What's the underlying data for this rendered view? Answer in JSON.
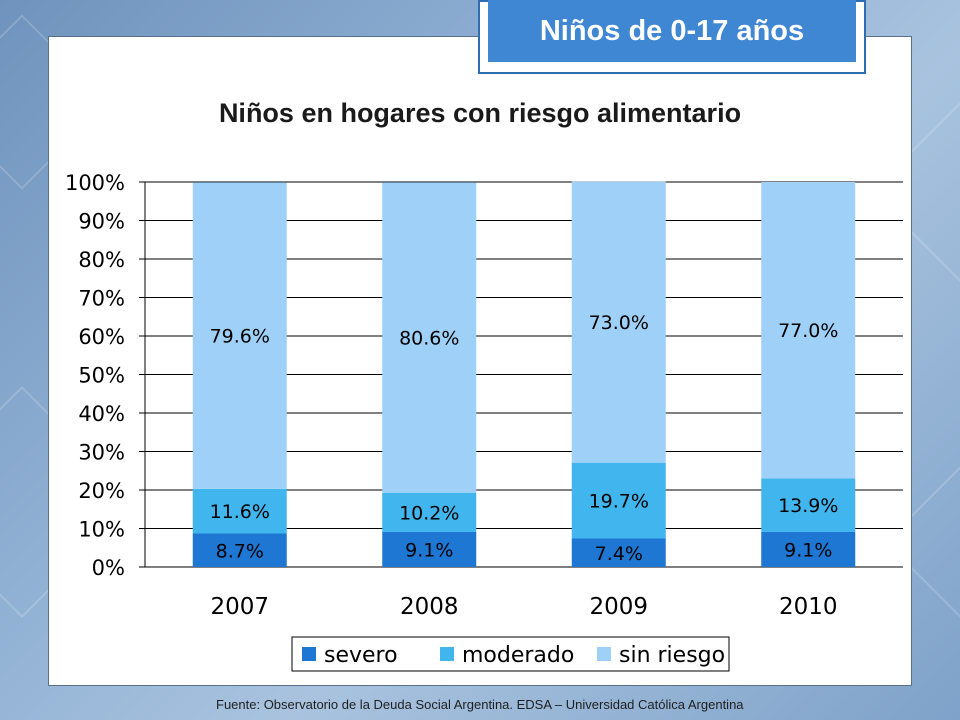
{
  "header": {
    "badge": "Niños de 0-17 años"
  },
  "source_note": "Fuente: Observatorio de la Deuda Social Argentina. EDSA – Universidad Católica Argentina",
  "chart_data": {
    "type": "bar",
    "stacked": true,
    "title": "Niños en hogares con riesgo alimentario",
    "categories": [
      "2007",
      "2008",
      "2009",
      "2010"
    ],
    "series": [
      {
        "name": "severo",
        "values": [
          8.7,
          9.1,
          7.4,
          9.1
        ],
        "labels": [
          "8.7%",
          "9.1%",
          "7.4%",
          "9.1%"
        ],
        "color": "#1f77d4"
      },
      {
        "name": "moderado",
        "values": [
          11.6,
          10.2,
          19.7,
          13.9
        ],
        "labels": [
          "11.6%",
          "10.2%",
          "19.7%",
          "13.9%"
        ],
        "color": "#41b6ee"
      },
      {
        "name": "sin riesgo",
        "values": [
          79.6,
          80.6,
          73.0,
          77.0
        ],
        "labels": [
          "79.6%",
          "80.6%",
          "73.0%",
          "77.0%"
        ],
        "color": "#9fd0f7"
      }
    ],
    "yticks": [
      "0%",
      "10%",
      "20%",
      "30%",
      "40%",
      "50%",
      "60%",
      "70%",
      "80%",
      "90%",
      "100%"
    ],
    "ylim": [
      0,
      100
    ],
    "grid": true,
    "legend": "bottom"
  }
}
